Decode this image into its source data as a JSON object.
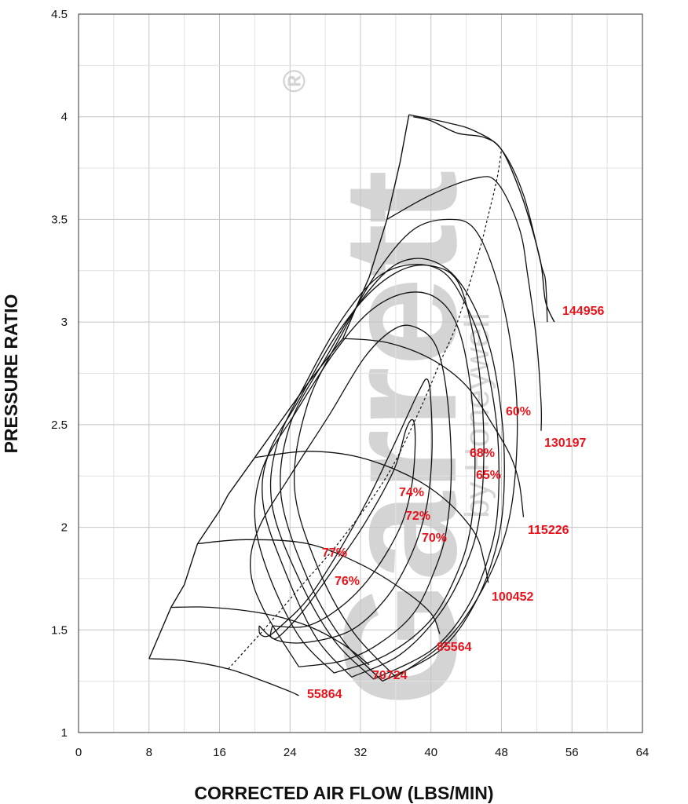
{
  "chart_data": {
    "type": "line",
    "xlabel": "CORRECTED AIR FLOW (LBS/MIN)",
    "ylabel": "PRESSURE RATIO",
    "xlim": [
      0,
      64
    ],
    "ylim": [
      1,
      4.5
    ],
    "xticks": [
      "0",
      "8",
      "16",
      "24",
      "32",
      "40",
      "48",
      "56",
      "64"
    ],
    "yticks": [
      "1",
      "1.5",
      "2",
      "2.5",
      "3",
      "3.5",
      "4",
      "4.5"
    ],
    "grid": true,
    "watermark": {
      "brand": "Garrett",
      "registered": "®",
      "by": "by Honeywell"
    },
    "speed_lines": [
      {
        "label": "55864",
        "points": [
          [
            8,
            1.36
          ],
          [
            12,
            1.35
          ],
          [
            17,
            1.31
          ],
          [
            21,
            1.25
          ],
          [
            24,
            1.2
          ],
          [
            25,
            1.18
          ]
        ]
      },
      {
        "label": "70724",
        "points": [
          [
            10.5,
            1.61
          ],
          [
            15,
            1.61
          ],
          [
            21,
            1.58
          ],
          [
            26,
            1.52
          ],
          [
            30,
            1.43
          ],
          [
            33,
            1.33
          ]
        ]
      },
      {
        "label": "85564",
        "points": [
          [
            13.5,
            1.92
          ],
          [
            19,
            1.94
          ],
          [
            26,
            1.92
          ],
          [
            32,
            1.82
          ],
          [
            37,
            1.69
          ],
          [
            40,
            1.58
          ],
          [
            41,
            1.48
          ]
        ]
      },
      {
        "label": "100452",
        "points": [
          [
            20,
            2.34
          ],
          [
            26,
            2.37
          ],
          [
            32,
            2.34
          ],
          [
            38,
            2.24
          ],
          [
            42,
            2.12
          ],
          [
            45,
            1.97
          ],
          [
            46,
            1.84
          ],
          [
            46.5,
            1.73
          ]
        ]
      },
      {
        "label": "115226",
        "points": [
          [
            30,
            2.92
          ],
          [
            35,
            2.9
          ],
          [
            40,
            2.82
          ],
          [
            44,
            2.69
          ],
          [
            47,
            2.5
          ],
          [
            49,
            2.35
          ],
          [
            50,
            2.22
          ],
          [
            50.5,
            2.05
          ]
        ]
      },
      {
        "label": "130197",
        "points": [
          [
            35,
            3.5
          ],
          [
            40,
            3.62
          ],
          [
            45,
            3.7
          ],
          [
            47.5,
            3.68
          ],
          [
            50,
            3.46
          ],
          [
            51,
            3.22
          ],
          [
            52,
            2.9
          ],
          [
            52.5,
            2.6
          ],
          [
            52.5,
            2.47
          ]
        ]
      },
      {
        "label": "144956",
        "points": [
          [
            37.5,
            4.01
          ],
          [
            42,
            3.97
          ],
          [
            45,
            3.93
          ],
          [
            48,
            3.84
          ],
          [
            50.5,
            3.62
          ],
          [
            52.5,
            3.28
          ],
          [
            53,
            3.2
          ],
          [
            53.2,
            3.0
          ]
        ]
      }
    ],
    "efficiency_islands": [
      {
        "label": "77%",
        "points": [
          [
            22.0,
            1.52
          ],
          [
            21.8,
            1.47
          ],
          [
            22.5,
            1.46
          ],
          [
            24,
            1.52
          ],
          [
            26,
            1.62
          ],
          [
            29,
            1.8
          ],
          [
            32.5,
            2.02
          ],
          [
            35.8,
            2.28
          ],
          [
            37.2,
            2.48
          ],
          [
            38.0,
            2.52
          ],
          [
            38.2,
            2.4
          ],
          [
            37.8,
            2.2
          ],
          [
            36.5,
            2.0
          ],
          [
            33.5,
            1.78
          ],
          [
            30,
            1.62
          ],
          [
            26,
            1.52
          ],
          [
            22.0,
            1.52
          ]
        ]
      },
      {
        "label": "76%",
        "points": [
          [
            20.5,
            1.52
          ],
          [
            20.6,
            1.48
          ],
          [
            21.5,
            1.47
          ],
          [
            23,
            1.52
          ],
          [
            26,
            1.65
          ],
          [
            29.5,
            1.88
          ],
          [
            33,
            2.15
          ],
          [
            36,
            2.42
          ],
          [
            38.6,
            2.66
          ],
          [
            39.6,
            2.72
          ],
          [
            40,
            2.6
          ],
          [
            40.1,
            2.35
          ],
          [
            39.5,
            2.1
          ],
          [
            37.8,
            1.87
          ],
          [
            35,
            1.66
          ],
          [
            31,
            1.5
          ],
          [
            26,
            1.44
          ],
          [
            22.5,
            1.45
          ],
          [
            20.5,
            1.52
          ]
        ]
      },
      {
        "label": "74%",
        "points": [
          [
            25,
            1.32
          ],
          [
            21,
            1.6
          ],
          [
            19.5,
            1.8
          ],
          [
            20.5,
            2.0
          ],
          [
            24,
            2.25
          ],
          [
            28.5,
            2.55
          ],
          [
            32.5,
            2.83
          ],
          [
            36,
            2.97
          ],
          [
            38.5,
            2.97
          ],
          [
            40.6,
            2.88
          ],
          [
            41.8,
            2.65
          ],
          [
            42.3,
            2.3
          ],
          [
            41.8,
            2.0
          ],
          [
            40.5,
            1.8
          ],
          [
            38,
            1.58
          ],
          [
            34,
            1.43
          ],
          [
            30,
            1.35
          ],
          [
            25,
            1.32
          ]
        ]
      },
      {
        "label": "72%",
        "points": [
          [
            29,
            1.29
          ],
          [
            25,
            1.47
          ],
          [
            21.5,
            1.78
          ],
          [
            20,
            2.05
          ],
          [
            21,
            2.3
          ],
          [
            24.5,
            2.55
          ],
          [
            29,
            2.85
          ],
          [
            33,
            3.05
          ],
          [
            37,
            3.14
          ],
          [
            40.5,
            3.12
          ],
          [
            43,
            2.98
          ],
          [
            44.5,
            2.68
          ],
          [
            45,
            2.3
          ],
          [
            44.5,
            2.0
          ],
          [
            43,
            1.78
          ],
          [
            40,
            1.55
          ],
          [
            35,
            1.38
          ],
          [
            29,
            1.29
          ]
        ]
      },
      {
        "label": "70%",
        "points": [
          [
            31,
            1.27
          ],
          [
            27,
            1.46
          ],
          [
            23.5,
            1.78
          ],
          [
            21,
            2.1
          ],
          [
            21.5,
            2.35
          ],
          [
            25,
            2.62
          ],
          [
            29,
            2.92
          ],
          [
            33,
            3.14
          ],
          [
            37,
            3.26
          ],
          [
            40.5,
            3.27
          ],
          [
            43,
            3.2
          ],
          [
            44.5,
            3.0
          ],
          [
            45.5,
            2.75
          ],
          [
            46,
            2.4
          ],
          [
            45.5,
            2.05
          ],
          [
            44,
            1.82
          ],
          [
            41,
            1.58
          ],
          [
            36.5,
            1.38
          ],
          [
            31,
            1.27
          ]
        ]
      },
      {
        "label": "68%",
        "points": [
          [
            33.5,
            1.26
          ],
          [
            29,
            1.45
          ],
          [
            25,
            1.75
          ],
          [
            22,
            2.1
          ],
          [
            22.5,
            2.4
          ],
          [
            26,
            2.72
          ],
          [
            30,
            3.02
          ],
          [
            34,
            3.22
          ],
          [
            38,
            3.28
          ],
          [
            41.5,
            3.24
          ],
          [
            44,
            3.08
          ],
          [
            46,
            2.85
          ],
          [
            47.5,
            2.48
          ],
          [
            47.6,
            2.1
          ],
          [
            46.5,
            1.85
          ],
          [
            44,
            1.6
          ],
          [
            40,
            1.4
          ],
          [
            33.5,
            1.26
          ]
        ]
      },
      {
        "label": "65%",
        "points": [
          [
            34.5,
            1.25
          ],
          [
            30,
            1.45
          ],
          [
            26,
            1.75
          ],
          [
            23,
            2.15
          ],
          [
            24,
            2.5
          ],
          [
            28,
            2.82
          ],
          [
            32,
            3.1
          ],
          [
            36,
            3.28
          ],
          [
            40,
            3.3
          ],
          [
            43.5,
            3.18
          ],
          [
            46.5,
            2.9
          ],
          [
            48,
            2.55
          ],
          [
            48.3,
            2.2
          ],
          [
            47.5,
            1.92
          ],
          [
            45,
            1.63
          ],
          [
            41,
            1.4
          ],
          [
            34.5,
            1.25
          ]
        ]
      },
      {
        "label": "60%",
        "points": [
          [
            36,
            1.27
          ],
          [
            31,
            1.5
          ],
          [
            27,
            1.82
          ],
          [
            24.5,
            2.2
          ],
          [
            26,
            2.6
          ],
          [
            30,
            2.95
          ],
          [
            34,
            3.25
          ],
          [
            38,
            3.45
          ],
          [
            42,
            3.5
          ],
          [
            45,
            3.45
          ],
          [
            47.5,
            3.2
          ],
          [
            49.2,
            2.85
          ],
          [
            49.8,
            2.5
          ],
          [
            49.2,
            2.12
          ],
          [
            47.5,
            1.85
          ],
          [
            44.5,
            1.6
          ],
          [
            41,
            1.42
          ],
          [
            36,
            1.27
          ]
        ]
      }
    ],
    "surge_line": [
      [
        8,
        1.36
      ],
      [
        10.5,
        1.61
      ],
      [
        12,
        1.72
      ],
      [
        13.5,
        1.92
      ],
      [
        16,
        2.08
      ],
      [
        17,
        2.16
      ],
      [
        20,
        2.34
      ],
      [
        23,
        2.52
      ],
      [
        26,
        2.7
      ],
      [
        30,
        2.92
      ],
      [
        33,
        3.22
      ],
      [
        35,
        3.5
      ],
      [
        36.5,
        3.78
      ],
      [
        37.5,
        4.01
      ]
    ],
    "choke_line": [
      [
        38,
        4.0
      ],
      [
        40,
        3.98
      ],
      [
        43,
        3.92
      ],
      [
        46,
        3.9
      ],
      [
        48,
        3.84
      ],
      [
        50,
        3.65
      ],
      [
        51.5,
        3.45
      ],
      [
        52.5,
        3.28
      ],
      [
        53,
        3.1
      ],
      [
        54,
        3.0
      ]
    ],
    "optimal_line": [
      [
        17,
        1.31
      ],
      [
        21,
        1.5
      ],
      [
        25,
        1.7
      ],
      [
        30,
        1.95
      ],
      [
        35,
        2.25
      ],
      [
        38.5,
        2.55
      ],
      [
        41,
        2.8
      ],
      [
        43,
        3.0
      ],
      [
        45.5,
        3.35
      ],
      [
        46.5,
        3.52
      ],
      [
        47.5,
        3.7
      ],
      [
        48,
        3.84
      ]
    ]
  }
}
